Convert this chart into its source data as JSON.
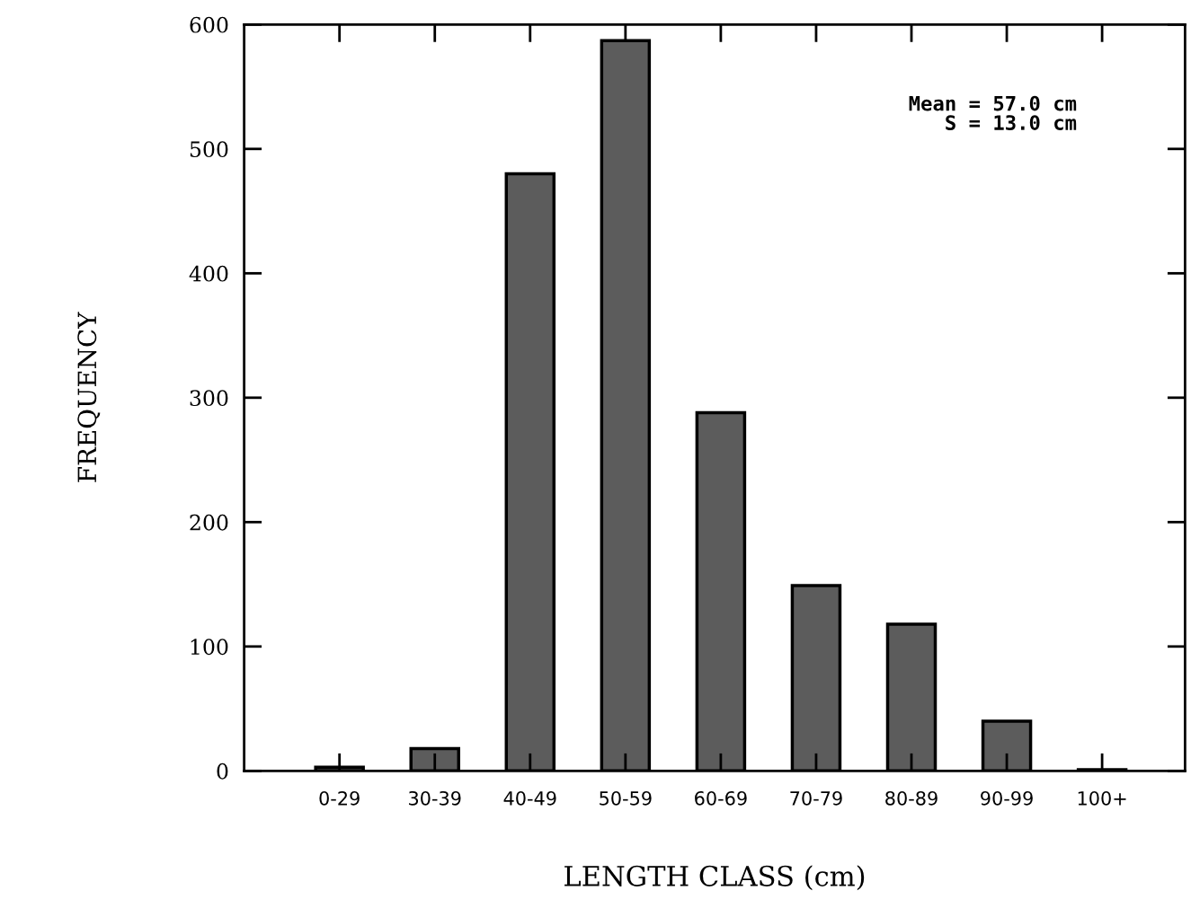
{
  "chart_data": {
    "type": "bar",
    "xlabel": "LENGTH CLASS (cm)",
    "ylabel": "FREQUENCY",
    "categories": [
      "0-29",
      "30-39",
      "40-49",
      "50-59",
      "60-69",
      "70-79",
      "80-89",
      "90-99",
      "100+"
    ],
    "values": [
      3,
      18,
      480,
      587,
      288,
      149,
      118,
      40,
      1
    ],
    "color": "#5c5c5c",
    "ylim": [
      0,
      600
    ],
    "yticks": [
      0,
      100,
      200,
      300,
      400,
      500,
      600
    ],
    "grid": false,
    "annotations": [
      "Mean = 57.0 cm\nS = 13.0 cm"
    ]
  }
}
